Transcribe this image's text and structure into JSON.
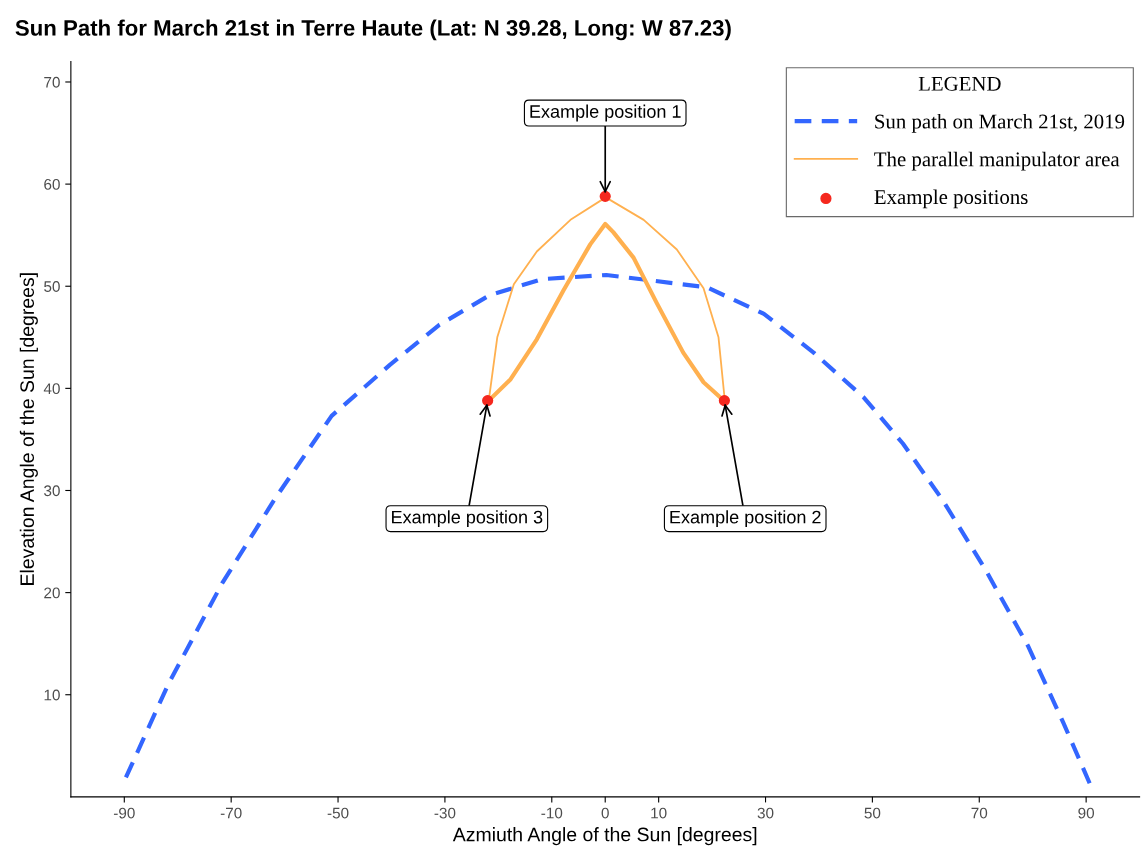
{
  "chart_data": {
    "type": "line",
    "title": "Sun Path for March 21st in Terre Haute (Lat: N 39.28, Long: W 87.23)",
    "xlabel": "Azmiuth Angle of the Sun [degrees]",
    "ylabel": "Elevation Angle of the Sun [degrees]",
    "legend_title": "LEGEND",
    "series": [
      {
        "name": "Sun path on March 21st, 2019",
        "color": "#3366ff",
        "line_style": "dashed",
        "x": [
          -89.7,
          -81.8,
          -71.7,
          -61.8,
          -51.2,
          -40.3,
          -31.1,
          -21.7,
          -11.8,
          0.2,
          19.0,
          29.7,
          39.0,
          48.4,
          55.7,
          63.1,
          71.1,
          79.1,
          85.7,
          91.1
        ],
        "values": [
          1.9,
          11.0,
          20.9,
          29.2,
          37.3,
          42.3,
          46.2,
          49.1,
          50.7,
          51.1,
          49.9,
          47.3,
          43.5,
          39.1,
          34.6,
          29.1,
          22.3,
          14.8,
          7.3,
          0.8
        ]
      },
      {
        "name": "The parallel manipulator area",
        "color": "#ffb04f",
        "line_style": "solid",
        "x": [
          -21.8,
          -20.2,
          -17.1,
          -12.8,
          -6.5,
          0.1,
          7.2,
          13.4,
          18.4,
          21.2,
          22.4
        ],
        "values": [
          38.8,
          45.0,
          50.2,
          53.4,
          56.5,
          58.7,
          56.5,
          53.6,
          49.8,
          45.0,
          38.7
        ]
      },
      {
        "color": "#ffb04f",
        "line_style": "solid",
        "x": [
          -21.8,
          -17.7,
          -12.8,
          -7.8,
          -2.8,
          0,
          1.5,
          5.3,
          9.7,
          14.6,
          18.4,
          22.4
        ],
        "values": [
          38.8,
          40.9,
          44.8,
          49.6,
          54.1,
          56.1,
          55.3,
          52.8,
          48.3,
          43.5,
          40.6,
          38.7
        ]
      },
      {
        "name": "Example positions",
        "type": "scatter",
        "marker": "circle",
        "color": "#f5281e",
        "x": [
          0,
          22.3,
          -22.0
        ],
        "values": [
          58.8,
          38.8,
          38.8
        ]
      }
    ],
    "annotations": [
      {
        "text": "Example position 1",
        "x": 0,
        "y": 58.8
      },
      {
        "text": "Example position 2",
        "x": 22.3,
        "y": 38.8
      },
      {
        "text": "Example position 3",
        "x": -22.0,
        "y": 38.8
      }
    ],
    "xlim": [
      -100,
      100
    ],
    "ylim": [
      0,
      72
    ],
    "xticks": [
      -90,
      -70,
      -50,
      -30,
      -10,
      0,
      10,
      30,
      50,
      70,
      90
    ],
    "yticks": [
      10,
      20,
      30,
      40,
      50,
      60,
      70
    ],
    "grid": false,
    "legend": "top right"
  }
}
